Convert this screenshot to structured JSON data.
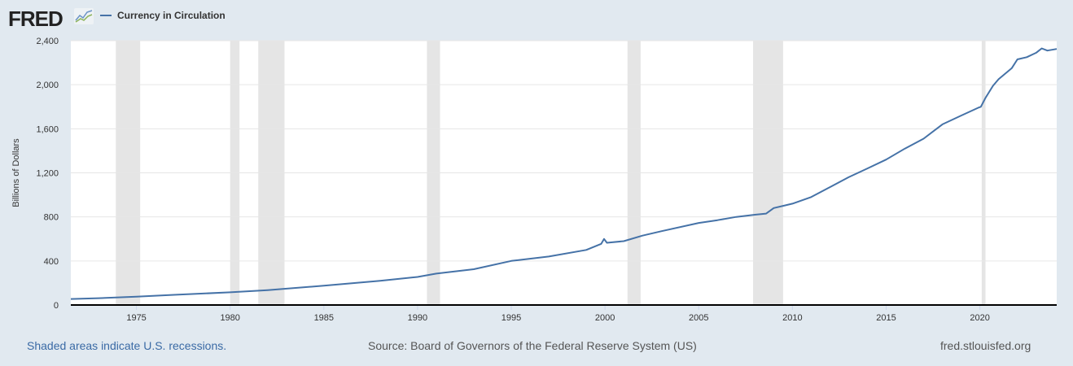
{
  "logo": "FRED",
  "logo_icon": "line-chart-icon",
  "chart_data": {
    "type": "line",
    "title": "",
    "ylabel": "Billions of Dollars",
    "xlabel": "",
    "xlim": [
      1971.5,
      2024.1
    ],
    "ylim": [
      0,
      2400
    ],
    "grid": true,
    "legend_placement": "top-left",
    "x_ticks": [
      1975,
      1980,
      1985,
      1990,
      1995,
      2000,
      2005,
      2010,
      2015,
      2020
    ],
    "y_ticks": [
      0,
      400,
      800,
      1200,
      1600,
      2000,
      2400
    ],
    "y_tick_labels": [
      "0",
      "400",
      "800",
      "1,200",
      "1,600",
      "2,000",
      "2,400"
    ],
    "recessions": [
      [
        1973.9,
        1975.2
      ],
      [
        1980.0,
        1980.5
      ],
      [
        1981.5,
        1982.9
      ],
      [
        1990.5,
        1991.2
      ],
      [
        2001.2,
        2001.9
      ],
      [
        2007.9,
        2009.5
      ],
      [
        2020.1,
        2020.3
      ]
    ],
    "series": [
      {
        "name": "Currency in Circulation",
        "color": "#4572a7",
        "x": [
          1971.5,
          1973,
          1975,
          1977,
          1980,
          1982,
          1985,
          1988,
          1990,
          1991,
          1993,
          1995,
          1997,
          1999,
          1999.8,
          1999.95,
          2000.1,
          2001,
          2002,
          2003,
          2005,
          2006,
          2007,
          2008,
          2008.6,
          2009,
          2009.5,
          2010,
          2011,
          2012,
          2013,
          2014,
          2015,
          2016,
          2017,
          2018,
          2019,
          2019.9,
          2020.05,
          2020.3,
          2020.7,
          2021,
          2021.7,
          2022,
          2022.5,
          2023,
          2023.3,
          2023.6,
          2024.1
        ],
        "y": [
          55,
          62,
          75,
          92,
          115,
          135,
          175,
          220,
          255,
          285,
          325,
          400,
          440,
          500,
          555,
          600,
          565,
          580,
          630,
          670,
          745,
          770,
          800,
          820,
          830,
          880,
          900,
          920,
          980,
          1070,
          1160,
          1240,
          1320,
          1420,
          1510,
          1640,
          1720,
          1790,
          1800,
          1880,
          1990,
          2050,
          2150,
          2230,
          2250,
          2290,
          2330,
          2310,
          2325
        ]
      }
    ],
    "recession_color": "#e5e5e5"
  },
  "footer": {
    "recessions_note": "Shaded areas indicate U.S. recessions.",
    "source": "Source: Board of Governors of the Federal Reserve System (US)",
    "site": "fred.stlouisfed.org"
  }
}
